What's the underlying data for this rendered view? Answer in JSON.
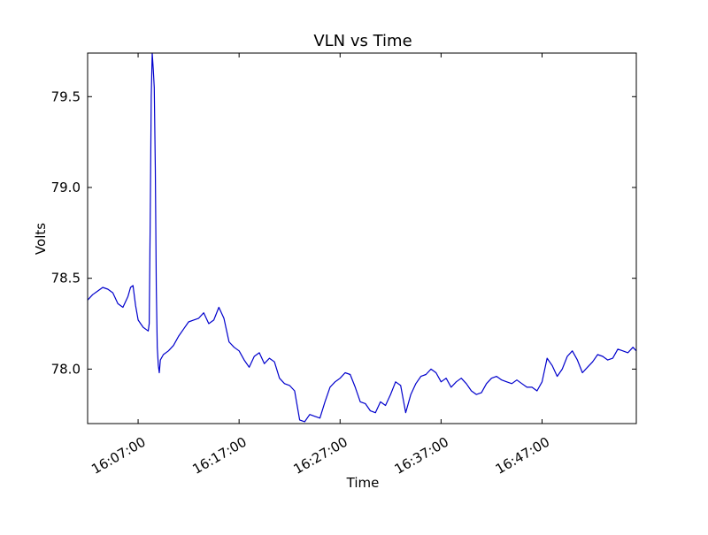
{
  "chart_data": {
    "type": "line",
    "title": "VLN vs Time",
    "xlabel": "Time",
    "ylabel": "Volts",
    "x_axis_type": "time",
    "xlim": [
      "16:02:00",
      "16:56:20"
    ],
    "ylim": [
      77.7,
      79.74
    ],
    "x_ticks": [
      "16:07:00",
      "16:17:00",
      "16:27:00",
      "16:37:00",
      "16:47:00"
    ],
    "y_ticks": [
      78.0,
      78.5,
      79.0,
      79.5
    ],
    "y_tick_labels": [
      "78.0",
      "78.5",
      "79.0",
      "79.5"
    ],
    "grid": false,
    "legend": "none",
    "line_color": "#0000cc",
    "series": [
      {
        "x": [
          "16:02:00",
          "16:02:30",
          "16:03:00",
          "16:03:30",
          "16:04:00",
          "16:04:30",
          "16:05:00",
          "16:05:30",
          "16:06:00",
          "16:06:15",
          "16:06:30",
          "16:06:45",
          "16:07:00",
          "16:07:15",
          "16:07:30",
          "16:07:45",
          "16:08:00",
          "16:08:06",
          "16:08:12",
          "16:08:18",
          "16:08:24",
          "16:08:30",
          "16:08:36",
          "16:08:42",
          "16:08:48",
          "16:08:54",
          "16:09:00",
          "16:09:06",
          "16:09:12",
          "16:09:30",
          "16:10:00",
          "16:10:30",
          "16:11:00",
          "16:11:30",
          "16:12:00",
          "16:12:30",
          "16:13:00",
          "16:13:30",
          "16:14:00",
          "16:14:30",
          "16:15:00",
          "16:15:30",
          "16:16:00",
          "16:16:30",
          "16:17:00",
          "16:17:30",
          "16:18:00",
          "16:18:30",
          "16:19:00",
          "16:19:30",
          "16:20:00",
          "16:20:30",
          "16:21:00",
          "16:21:30",
          "16:22:00",
          "16:22:30",
          "16:23:00",
          "16:23:30",
          "16:24:00",
          "16:24:30",
          "16:25:00",
          "16:25:30",
          "16:26:00",
          "16:26:30",
          "16:27:00",
          "16:27:30",
          "16:28:00",
          "16:28:30",
          "16:29:00",
          "16:29:30",
          "16:30:00",
          "16:30:30",
          "16:31:00",
          "16:31:30",
          "16:32:00",
          "16:32:30",
          "16:33:00",
          "16:33:30",
          "16:34:00",
          "16:34:30",
          "16:35:00",
          "16:35:30",
          "16:36:00",
          "16:36:30",
          "16:37:00",
          "16:37:30",
          "16:38:00",
          "16:38:30",
          "16:39:00",
          "16:39:30",
          "16:40:00",
          "16:40:30",
          "16:41:00",
          "16:41:30",
          "16:42:00",
          "16:42:30",
          "16:43:00",
          "16:43:30",
          "16:44:00",
          "16:44:30",
          "16:45:00",
          "16:45:30",
          "16:46:00",
          "16:46:30",
          "16:47:00",
          "16:47:30",
          "16:48:00",
          "16:48:30",
          "16:49:00",
          "16:49:30",
          "16:50:00",
          "16:50:30",
          "16:51:00",
          "16:51:30",
          "16:52:00",
          "16:52:30",
          "16:53:00",
          "16:53:30",
          "16:54:00",
          "16:54:30",
          "16:55:00",
          "16:55:30",
          "16:56:00",
          "16:56:20"
        ],
        "values": [
          78.38,
          78.41,
          78.43,
          78.45,
          78.44,
          78.42,
          78.36,
          78.34,
          78.4,
          78.45,
          78.46,
          78.35,
          78.27,
          78.25,
          78.23,
          78.22,
          78.21,
          78.25,
          78.8,
          79.5,
          79.74,
          79.65,
          79.55,
          79.1,
          78.45,
          78.12,
          78.02,
          77.98,
          78.05,
          78.08,
          78.1,
          78.13,
          78.18,
          78.22,
          78.26,
          78.27,
          78.28,
          78.31,
          78.25,
          78.27,
          78.34,
          78.28,
          78.15,
          78.12,
          78.1,
          78.05,
          78.01,
          78.07,
          78.09,
          78.03,
          78.06,
          78.04,
          77.95,
          77.92,
          77.91,
          77.88,
          77.72,
          77.71,
          77.75,
          77.74,
          77.73,
          77.82,
          77.9,
          77.93,
          77.95,
          77.98,
          77.97,
          77.9,
          77.82,
          77.81,
          77.77,
          77.76,
          77.82,
          77.8,
          77.86,
          77.93,
          77.91,
          77.76,
          77.86,
          77.92,
          77.96,
          77.97,
          78.0,
          77.98,
          77.93,
          77.95,
          77.9,
          77.93,
          77.95,
          77.92,
          77.88,
          77.86,
          77.87,
          77.92,
          77.95,
          77.96,
          77.94,
          77.93,
          77.92,
          77.94,
          77.92,
          77.9,
          77.9,
          77.88,
          77.93,
          78.06,
          78.02,
          77.96,
          78.0,
          78.07,
          78.1,
          78.05,
          77.98,
          78.01,
          78.04,
          78.08,
          78.07,
          78.05,
          78.06,
          78.11,
          78.1,
          78.09,
          78.12,
          78.1
        ]
      }
    ]
  }
}
